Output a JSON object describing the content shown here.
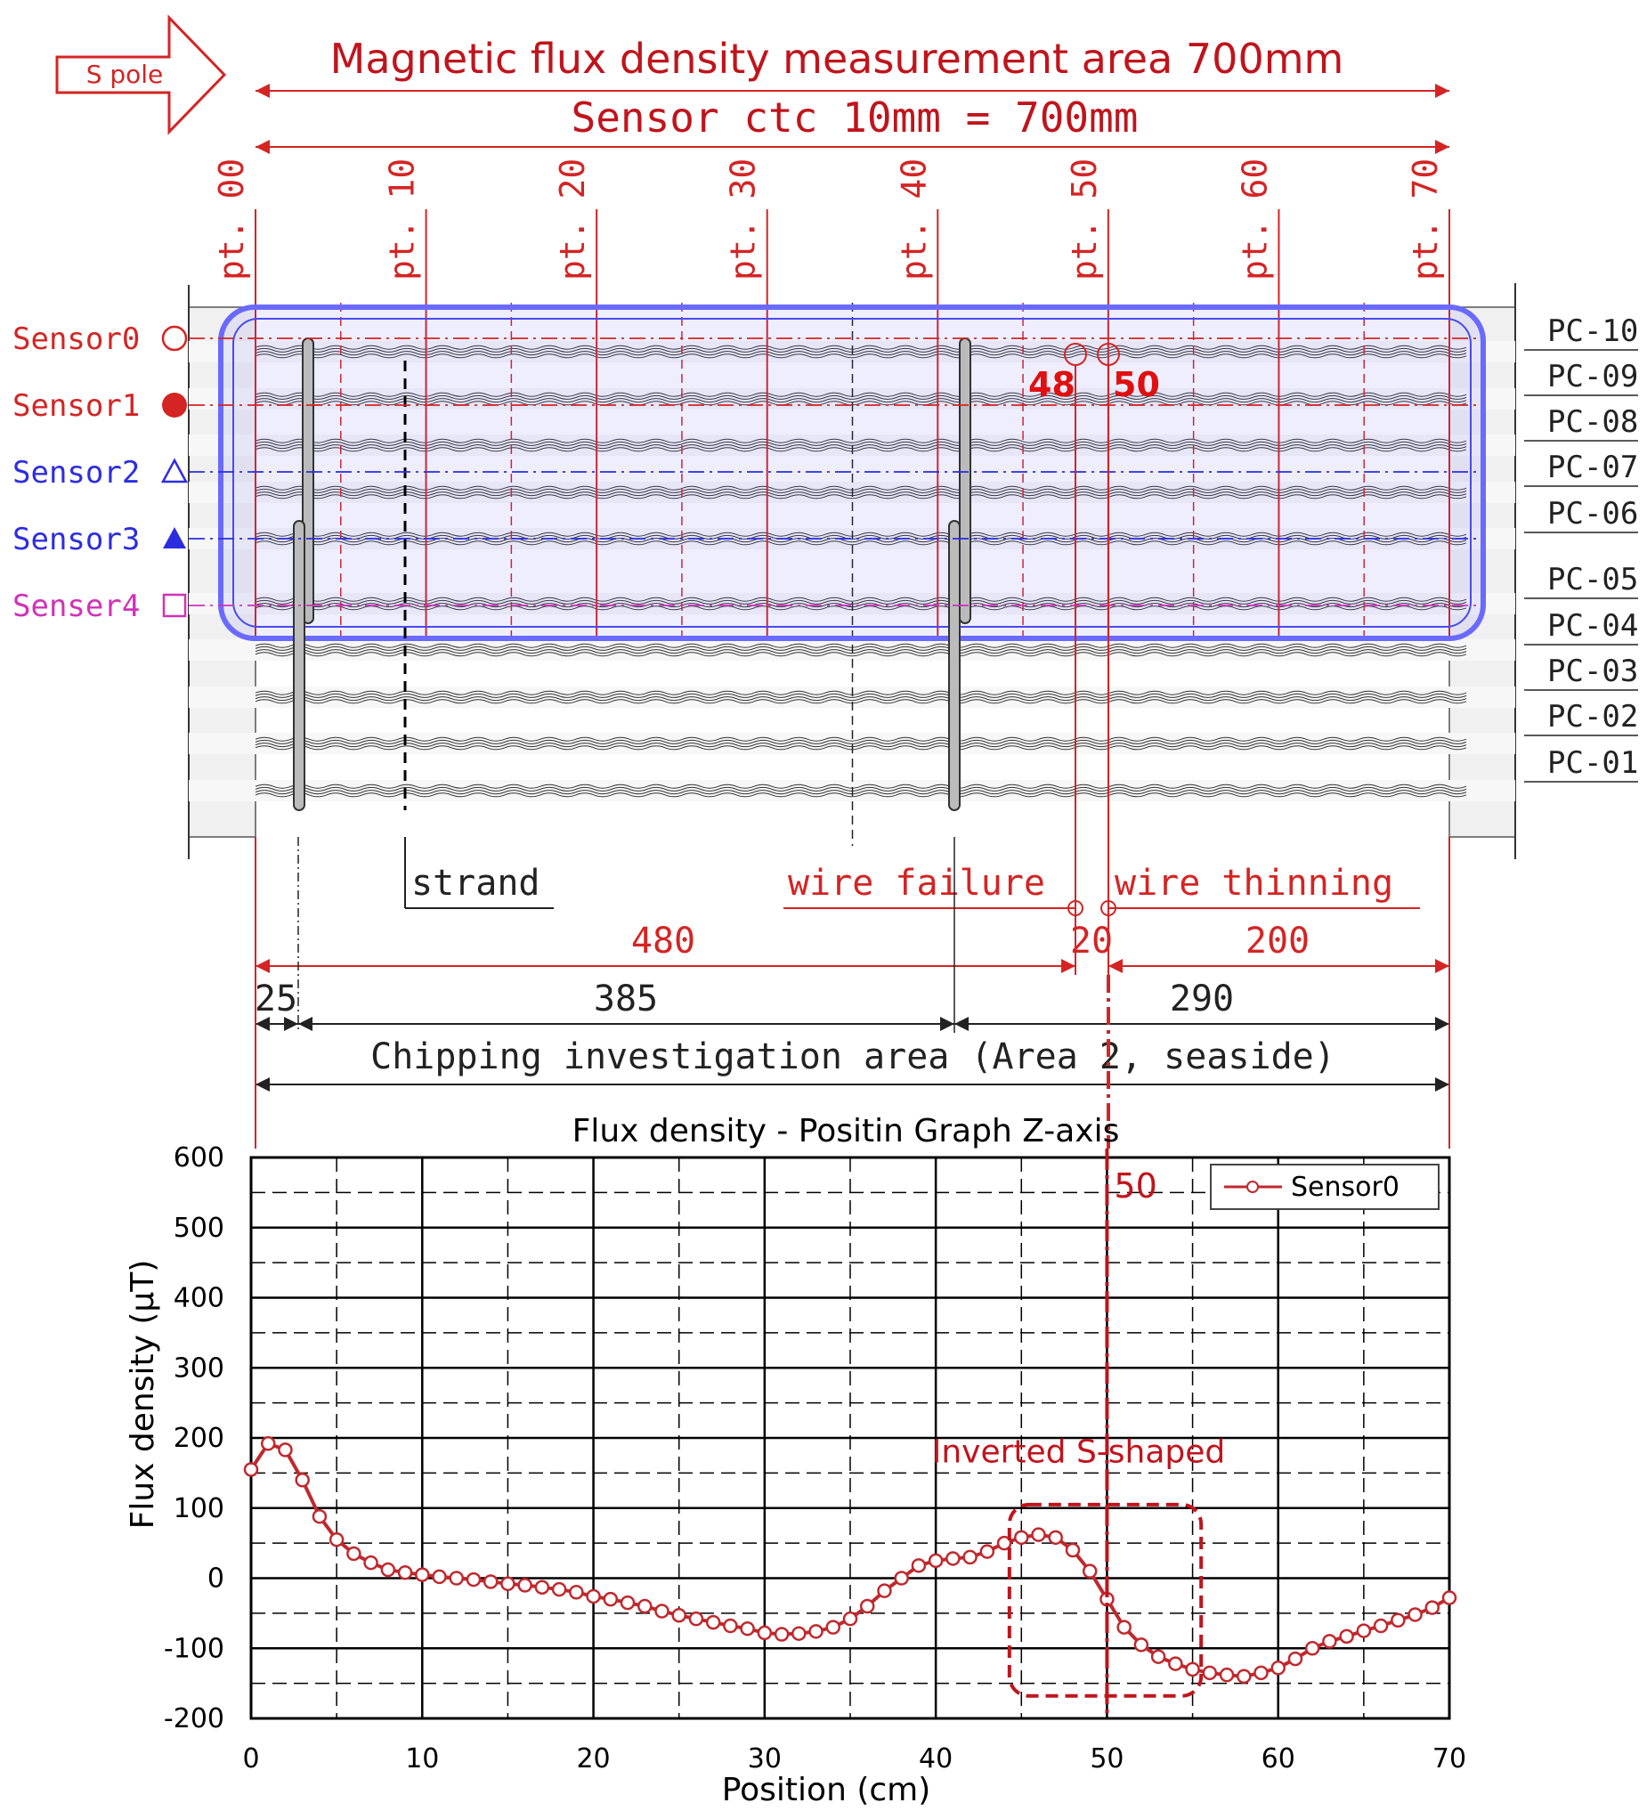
{
  "diagram": {
    "arrow_label": "S pole",
    "title": "Magnetic flux density measurement area 700mm",
    "sensor_span_label": "Sensor ctc 10mm = 700mm",
    "points": [
      "pt. 00",
      "pt. 10",
      "pt. 20",
      "pt. 30",
      "pt. 40",
      "pt. 50",
      "pt. 60",
      "pt. 70"
    ],
    "sensors": [
      {
        "label": "Sensor0",
        "marker": "circle-open",
        "color": "#d42424"
      },
      {
        "label": "Sensor1",
        "marker": "circle-filled",
        "color": "#d42424"
      },
      {
        "label": "Sensor2",
        "marker": "triangle-open",
        "color": "#2d2de0"
      },
      {
        "label": "Sensor3",
        "marker": "triangle-filled",
        "color": "#2d2de0"
      },
      {
        "label": "Senser4",
        "marker": "square-open",
        "color": "#d032b8"
      }
    ],
    "cables": [
      "PC-10",
      "PC-09",
      "PC-08",
      "PC-07",
      "PC-06",
      "PC-05",
      "PC-04",
      "PC-03",
      "PC-02",
      "PC-01"
    ],
    "marker_48": "48",
    "marker_50": "50",
    "strand_label": "strand",
    "wire_failure_label": "wire failure",
    "wire_thinning_label": "wire thinning",
    "dim_480": "480",
    "dim_20": "20",
    "dim_200": "200",
    "dim_25": "25",
    "dim_385": "385",
    "dim_290": "290",
    "chipping_label": "Chipping investigation area (Area 2, seaside)"
  },
  "chart_data": {
    "type": "line",
    "title": "Flux density - Positin Graph  Z-axis",
    "xlabel": "Position (cm)",
    "ylabel": "Flux density (μT)",
    "xlim": [
      0,
      70
    ],
    "ylim": [
      -200,
      600
    ],
    "xticks": [
      "0",
      "10",
      "20",
      "30",
      "40",
      "50",
      "60",
      "70"
    ],
    "yticks": [
      "600",
      "500",
      "400",
      "300",
      "200",
      "100",
      "0",
      "-100",
      "-200"
    ],
    "grid": true,
    "legend_position": "top-right",
    "series": [
      {
        "name": "Sensor0",
        "color": "#c0282d",
        "x": [
          0,
          1,
          2,
          3,
          4,
          5,
          6,
          7,
          8,
          9,
          10,
          11,
          12,
          13,
          14,
          15,
          16,
          17,
          18,
          19,
          20,
          21,
          22,
          23,
          24,
          25,
          26,
          27,
          28,
          29,
          30,
          31,
          32,
          33,
          34,
          35,
          36,
          37,
          38,
          39,
          40,
          41,
          42,
          43,
          44,
          45,
          46,
          47,
          48,
          49,
          50,
          51,
          52,
          53,
          54,
          55,
          56,
          57,
          58,
          59,
          60,
          61,
          62,
          63,
          64,
          65,
          66,
          67,
          68,
          69,
          70
        ],
        "y": [
          155,
          192,
          183,
          140,
          88,
          55,
          35,
          22,
          12,
          8,
          5,
          2,
          0,
          -2,
          -5,
          -8,
          -10,
          -13,
          -16,
          -20,
          -26,
          -30,
          -35,
          -40,
          -47,
          -53,
          -58,
          -63,
          -68,
          -72,
          -78,
          -80,
          -79,
          -76,
          -70,
          -58,
          -40,
          -18,
          0,
          18,
          25,
          28,
          30,
          38,
          50,
          58,
          62,
          58,
          40,
          10,
          -30,
          -70,
          -95,
          -112,
          -122,
          -130,
          -135,
          -138,
          -140,
          -135,
          -128,
          -115,
          -100,
          -90,
          -83,
          -75,
          -68,
          -60,
          -52,
          -42,
          -28
        ]
      }
    ],
    "annotations": [
      {
        "text": "50",
        "x": 50
      },
      {
        "text": "Inverted S-shaped"
      }
    ]
  }
}
